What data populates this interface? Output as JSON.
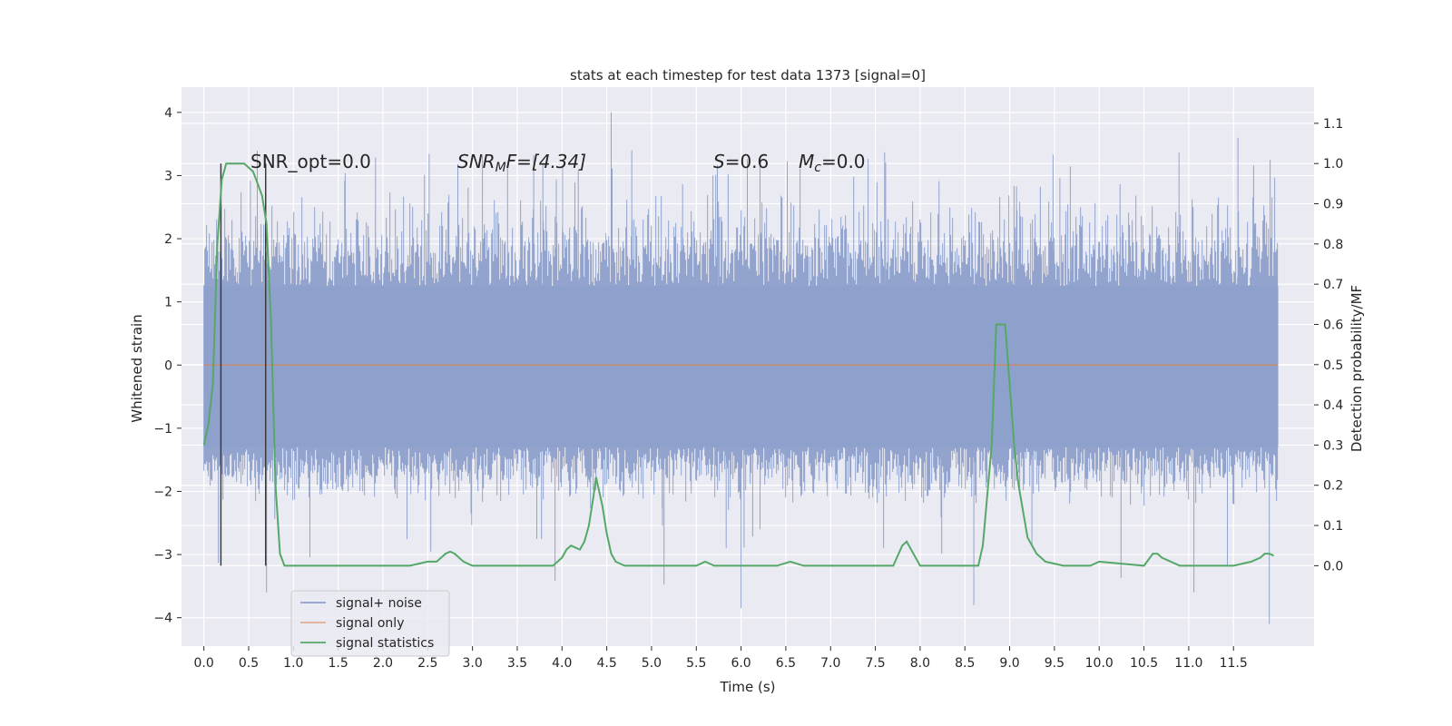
{
  "chart_data": {
    "type": "line",
    "title": "stats at each timestep for test data 1373 [signal=0]",
    "xlabel": "Time (s)",
    "ylabel_left": "Whitened strain",
    "ylabel_right": "Detection probability/MF",
    "xlim": [
      -0.25,
      12.4
    ],
    "ylim_left": [
      -4.45,
      4.4
    ],
    "ylim_right": [
      -0.2,
      1.19
    ],
    "grid": true,
    "x_ticks": [
      0.0,
      0.5,
      1.0,
      1.5,
      2.0,
      2.5,
      3.0,
      3.5,
      4.0,
      4.5,
      5.0,
      5.5,
      6.0,
      6.5,
      7.0,
      7.5,
      8.0,
      8.5,
      9.0,
      9.5,
      10.0,
      10.5,
      11.0,
      11.5
    ],
    "x_tick_labels": [
      "0.0",
      "0.5",
      "1.0",
      "1.5",
      "2.0",
      "2.5",
      "3.0",
      "3.5",
      "4.0",
      "4.5",
      "5.0",
      "5.5",
      "6.0",
      "6.5",
      "7.0",
      "7.5",
      "8.0",
      "8.5",
      "9.0",
      "9.5",
      "10.0",
      "10.5",
      "11.0",
      "11.5"
    ],
    "y_left_ticks": [
      4,
      3,
      2,
      1,
      0,
      -1,
      -2,
      -3,
      -4
    ],
    "y_left_tick_labels": [
      "4",
      "3",
      "2",
      "1",
      "0",
      "−1",
      "−2",
      "−3",
      "−4"
    ],
    "y_right_ticks": [
      1.1,
      1.0,
      0.9,
      0.8,
      0.7,
      0.6,
      0.5,
      0.4,
      0.3,
      0.2,
      0.1,
      0.0
    ],
    "y_right_tick_labels": [
      "1.1",
      "1.0",
      "0.9",
      "0.8",
      "0.7",
      "0.6",
      "0.5",
      "0.4",
      "0.3",
      "0.2",
      "0.1",
      "0.0"
    ],
    "annotations": {
      "snr_opt": "SNR_opt=0.0",
      "snr_mf_main": "SNR",
      "snr_mf_sub": "M",
      "snr_mf_rest": "F=[4.34]",
      "s_main": "S",
      "s_rest": "=0.6",
      "mc_main": "M",
      "mc_sub": "c",
      "mc_rest": "=0.0"
    },
    "vlines": [
      0.19,
      0.69
    ],
    "vline_range_right": [
      0.0,
      1.0
    ],
    "series": [
      {
        "name": "signal+ noise",
        "color": "#8da0cb",
        "axis": "left",
        "x_range": [
          0.0,
          12.0
        ],
        "band_core": [
          -1.3,
          1.25
        ],
        "typical_peak": [
          -2.3,
          2.8
        ],
        "extreme_max": 4.0,
        "extreme_min": -4.1
      },
      {
        "name": "signal only",
        "color": "#dd8452",
        "axis": "left",
        "x": [
          0.0,
          12.0
        ],
        "y": [
          0.0,
          0.0
        ]
      },
      {
        "name": "signal statistics",
        "color": "#55a868",
        "axis": "right",
        "x": [
          0.0,
          0.05,
          0.1,
          0.15,
          0.2,
          0.25,
          0.35,
          0.45,
          0.55,
          0.6,
          0.65,
          0.7,
          0.75,
          0.8,
          0.85,
          0.9,
          1.0,
          1.5,
          2.0,
          2.3,
          2.5,
          2.6,
          2.7,
          2.75,
          2.8,
          2.9,
          3.0,
          3.5,
          3.9,
          4.0,
          4.05,
          4.1,
          4.2,
          4.25,
          4.3,
          4.35,
          4.38,
          4.45,
          4.5,
          4.55,
          4.6,
          4.7,
          5.0,
          5.5,
          5.6,
          5.7,
          6.0,
          6.4,
          6.55,
          6.7,
          7.0,
          7.5,
          7.7,
          7.8,
          7.85,
          7.9,
          8.0,
          8.1,
          8.5,
          8.65,
          8.7,
          8.8,
          8.85,
          8.95,
          9.0,
          9.05,
          9.1,
          9.2,
          9.3,
          9.4,
          9.6,
          9.8,
          9.9,
          10.0,
          10.5,
          10.6,
          10.65,
          10.7,
          10.8,
          10.9,
          11.0,
          11.5,
          11.7,
          11.8,
          11.85,
          11.9,
          11.95
        ],
        "y": [
          0.3,
          0.35,
          0.45,
          0.8,
          0.96,
          1.0,
          1.0,
          1.0,
          0.98,
          0.95,
          0.92,
          0.85,
          0.6,
          0.2,
          0.03,
          0.0,
          0.0,
          0.0,
          0.0,
          0.0,
          0.01,
          0.01,
          0.03,
          0.035,
          0.03,
          0.01,
          0.0,
          0.0,
          0.0,
          0.02,
          0.04,
          0.05,
          0.04,
          0.06,
          0.1,
          0.17,
          0.22,
          0.15,
          0.08,
          0.03,
          0.01,
          0.0,
          0.0,
          0.0,
          0.01,
          0.0,
          0.0,
          0.0,
          0.01,
          0.0,
          0.0,
          0.0,
          0.0,
          0.05,
          0.06,
          0.04,
          0.0,
          0.0,
          0.0,
          0.0,
          0.05,
          0.3,
          0.6,
          0.6,
          0.45,
          0.3,
          0.2,
          0.07,
          0.03,
          0.01,
          0.0,
          0.0,
          0.0,
          0.01,
          0.0,
          0.03,
          0.03,
          0.02,
          0.01,
          0.0,
          0.0,
          0.0,
          0.01,
          0.02,
          0.03,
          0.03,
          0.025
        ]
      }
    ],
    "legend_position": "lower-left"
  }
}
